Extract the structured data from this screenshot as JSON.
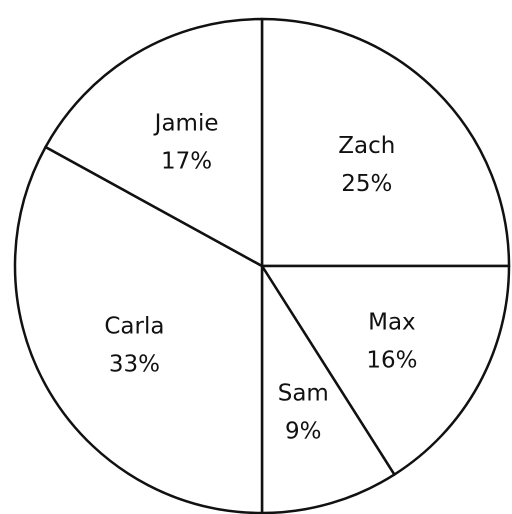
{
  "chart_data": {
    "type": "pie",
    "slices": [
      {
        "label": "Zach",
        "value": 25,
        "value_text": "25%"
      },
      {
        "label": "Max",
        "value": 16,
        "value_text": "16%"
      },
      {
        "label": "Sam",
        "value": 9,
        "value_text": "9%"
      },
      {
        "label": "Carla",
        "value": 33,
        "value_text": "33%"
      },
      {
        "label": "Jamie",
        "value": 17,
        "value_text": "17%"
      }
    ],
    "start_angle": "12 o'clock",
    "direction": "clockwise",
    "colors": {
      "stroke": "#111111",
      "fill": "#ffffff",
      "text": "#111111"
    }
  }
}
